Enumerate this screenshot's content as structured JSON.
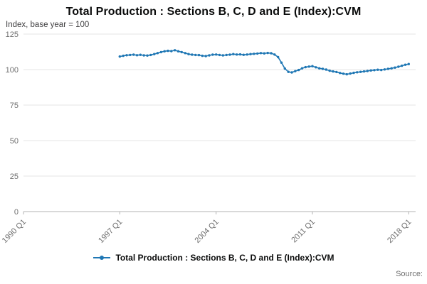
{
  "header": {
    "title": "Total Production : Sections B, C, D and E (Index):CVM",
    "subtitle": "Index, base year = 100"
  },
  "legend": {
    "label": "Total Production : Sections B, C, D and E (Index):CVM"
  },
  "footer": {
    "source_label": "Source:"
  },
  "colors": {
    "series": "#1f77b4",
    "grid": "#e6e6e6",
    "axis": "#b3b3b3",
    "tick_text": "#6e6e6e",
    "title_text": "#0b0c0c"
  },
  "chart_data": {
    "type": "line",
    "title": "Total Production : Sections B, C, D and E (Index):CVM",
    "subtitle": "Index, base year = 100",
    "xlabel": "",
    "ylabel": "Index, base year = 100",
    "ylim": [
      0,
      125
    ],
    "y_ticks": [
      0,
      25,
      50,
      75,
      100,
      125
    ],
    "x_range": [
      1990,
      2018.5
    ],
    "x_tick_values": [
      1990,
      1997,
      2004,
      2011,
      2018
    ],
    "x_tick_labels": [
      "1990 Q1",
      "1997 Q1",
      "2004 Q1",
      "2011 Q1",
      "2018 Q1"
    ],
    "x_label_rotation": -45,
    "grid": true,
    "legend_position": "bottom",
    "series": [
      {
        "name": "Total Production : Sections B, C, D and E (Index):CVM",
        "frequency": "quarterly",
        "x_start": 1997.0,
        "x_step": 0.25,
        "values": [
          109.2,
          109.7,
          110.1,
          110.3,
          110.5,
          110.1,
          110.4,
          110.0,
          109.9,
          110.3,
          110.9,
          111.6,
          112.3,
          112.9,
          113.2,
          113.0,
          113.6,
          112.9,
          112.3,
          111.6,
          110.9,
          110.5,
          110.3,
          110.2,
          109.7,
          109.5,
          110.0,
          110.5,
          110.6,
          110.3,
          110.0,
          110.3,
          110.5,
          110.9,
          110.6,
          110.7,
          110.4,
          110.6,
          110.9,
          111.1,
          111.3,
          111.6,
          111.4,
          111.7,
          111.5,
          110.6,
          108.8,
          104.9,
          100.7,
          98.4,
          98.0,
          98.9,
          99.7,
          100.9,
          101.7,
          102.1,
          102.4,
          101.6,
          100.9,
          100.5,
          100.0,
          99.2,
          98.7,
          98.3,
          97.6,
          97.1,
          96.7,
          97.2,
          97.7,
          98.1,
          98.4,
          98.7,
          99.0,
          99.4,
          99.6,
          99.9,
          99.7,
          100.1,
          100.5,
          100.9,
          101.4,
          102.0,
          102.7,
          103.4,
          103.9
        ]
      }
    ]
  }
}
